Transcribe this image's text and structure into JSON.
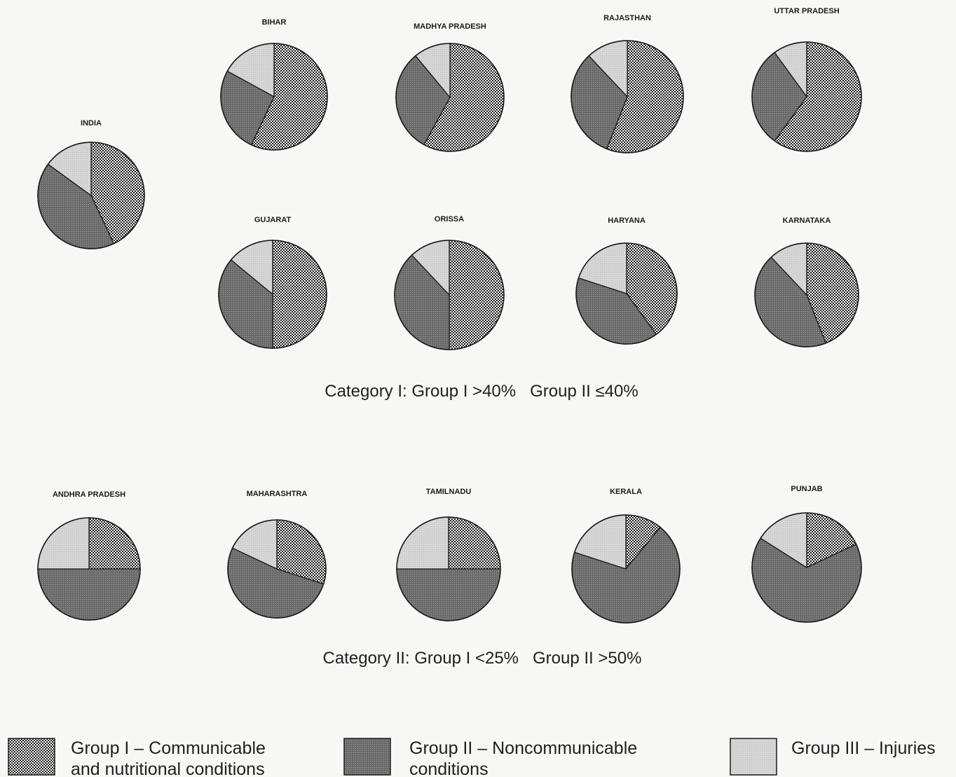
{
  "legend": {
    "group1": "Group I – Communicable and nutritional conditions",
    "group1_line1": "Group I – Communicable",
    "group1_line2": "and nutritional conditions",
    "group2": "Group II – Noncommunicable conditions",
    "group2_line1": "Group II – Noncommunicable",
    "group2_line2": "conditions",
    "group3": "Group III – Injuries"
  },
  "category_labels": {
    "cat1": "Category I: Group I >40%   Group II ≤40%",
    "cat2": "Category II: Group I <25%   Group II >50%"
  },
  "colors": {
    "group1": "#ffffff",
    "group1_dot": "#1a1a1a",
    "group2": "#7a7a7a",
    "group3": "#d4d4d4",
    "outline": "#1a1a1a"
  },
  "chart_data": {
    "type": "pie",
    "series_names": [
      "Group I",
      "Group II",
      "Group III"
    ],
    "pies": [
      {
        "name": "INDIA",
        "category": "",
        "values": [
          43,
          42,
          15
        ]
      },
      {
        "name": "BIHAR",
        "category": "Category I",
        "values": [
          57,
          26,
          17
        ]
      },
      {
        "name": "MADHYA PRADESH",
        "category": "Category I",
        "values": [
          58,
          31,
          11
        ]
      },
      {
        "name": "RAJASTHAN",
        "category": "Category I",
        "values": [
          56,
          32,
          12
        ]
      },
      {
        "name": "UTTAR PRADESH",
        "category": "Category I",
        "values": [
          60,
          30,
          10
        ]
      },
      {
        "name": "GUJARAT",
        "category": "Category I",
        "values": [
          50,
          36,
          14
        ]
      },
      {
        "name": "ORISSA",
        "category": "Category I",
        "values": [
          50,
          38,
          12
        ]
      },
      {
        "name": "HARYANA",
        "category": "Category I",
        "values": [
          40,
          40,
          20
        ]
      },
      {
        "name": "KARNATAKA",
        "category": "Category I",
        "values": [
          44,
          44,
          12
        ]
      },
      {
        "name": "ANDHRA PRADESH",
        "category": "Category II",
        "values": [
          25,
          50,
          25
        ]
      },
      {
        "name": "MAHARASHTRA",
        "category": "Category II",
        "values": [
          30,
          52,
          18
        ]
      },
      {
        "name": "TAMILNADU",
        "category": "Category II",
        "values": [
          25,
          50,
          25
        ]
      },
      {
        "name": "KERALA",
        "category": "Category II",
        "values": [
          11,
          69,
          20
        ]
      },
      {
        "name": "PUNJAB",
        "category": "Category II",
        "values": [
          18,
          66,
          16
        ]
      }
    ]
  }
}
